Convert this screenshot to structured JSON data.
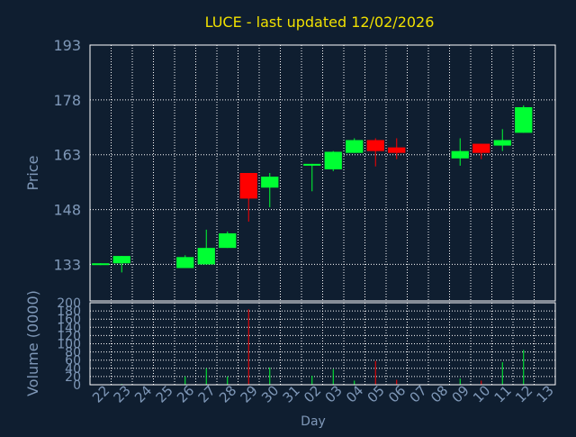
{
  "title": "LUCE - last updated 12/02/2026",
  "colors": {
    "background": "#0f1e30",
    "title": "#f0e000",
    "axis_text": "#7f98b8",
    "grid": "#ffffff",
    "axis_line": "#ffffff",
    "up": "#00ff33",
    "down": "#ff0000"
  },
  "chart_data": [
    {
      "type": "candlestick",
      "ylabel": "Price",
      "ylim": [
        123,
        193
      ],
      "yticks": [
        133,
        148,
        163,
        178,
        193
      ],
      "grid": true,
      "candles": [
        {
          "day": "22",
          "open": 133.0,
          "high": 133.3,
          "low": 132.8,
          "close": 133.3
        },
        {
          "day": "23",
          "open": 133.3,
          "high": 135.3,
          "low": 130.8,
          "close": 135.3
        },
        {
          "day": "24",
          "open": null,
          "high": null,
          "low": null,
          "close": null
        },
        {
          "day": "25",
          "open": null,
          "high": null,
          "low": null,
          "close": null
        },
        {
          "day": "26",
          "open": 132.0,
          "high": 135.5,
          "low": 132.0,
          "close": 135.0
        },
        {
          "day": "27",
          "open": 133.0,
          "high": 142.5,
          "low": 133.0,
          "close": 137.5
        },
        {
          "day": "28",
          "open": 137.5,
          "high": 142.0,
          "low": 137.5,
          "close": 141.5
        },
        {
          "day": "29",
          "open": 158.0,
          "high": 158.0,
          "low": 144.7,
          "close": 151.0
        },
        {
          "day": "30",
          "open": 154.0,
          "high": 158.0,
          "low": 148.6,
          "close": 157.0
        },
        {
          "day": "31",
          "open": null,
          "high": null,
          "low": null,
          "close": null
        },
        {
          "day": "02",
          "open": 160.0,
          "high": 160.5,
          "low": 153.0,
          "close": 160.5
        },
        {
          "day": "03",
          "open": 159.0,
          "high": 164.0,
          "low": 158.5,
          "close": 163.8
        },
        {
          "day": "04",
          "open": 163.5,
          "high": 167.5,
          "low": 163.5,
          "close": 167.0
        },
        {
          "day": "05",
          "open": 167.0,
          "high": 167.5,
          "low": 159.8,
          "close": 164.0
        },
        {
          "day": "06",
          "open": 165.0,
          "high": 167.5,
          "low": 161.8,
          "close": 163.5
        },
        {
          "day": "07",
          "open": null,
          "high": null,
          "low": null,
          "close": null
        },
        {
          "day": "08",
          "open": null,
          "high": null,
          "low": null,
          "close": null
        },
        {
          "day": "09",
          "open": 162.0,
          "high": 167.5,
          "low": 160.0,
          "close": 164.0
        },
        {
          "day": "10",
          "open": 166.0,
          "high": 166.0,
          "low": 161.8,
          "close": 163.5
        },
        {
          "day": "11",
          "open": 165.5,
          "high": 170.0,
          "low": 164.0,
          "close": 167.0
        },
        {
          "day": "12",
          "open": 169.0,
          "high": 176.5,
          "low": 169.0,
          "close": 176.0
        }
      ]
    },
    {
      "type": "bar",
      "ylabel": "Volume (0000)",
      "xlabel": "Day",
      "ylim": [
        0,
        200
      ],
      "yticks": [
        0,
        20,
        40,
        60,
        80,
        100,
        120,
        140,
        160,
        180,
        200
      ],
      "grid": true,
      "categories": [
        "22",
        "23",
        "24",
        "25",
        "26",
        "27",
        "28",
        "29",
        "30",
        "31",
        "02",
        "03",
        "04",
        "05",
        "06",
        "07",
        "08",
        "09",
        "10",
        "11",
        "12",
        "13"
      ],
      "values": [
        1,
        2,
        0,
        0,
        20,
        40,
        20,
        184,
        42,
        0,
        22,
        38,
        10,
        58,
        12,
        0,
        0,
        15,
        10,
        55,
        85,
        0
      ],
      "directions": [
        "up",
        "up",
        "none",
        "none",
        "up",
        "up",
        "up",
        "down",
        "up",
        "none",
        "up",
        "up",
        "up",
        "down",
        "down",
        "none",
        "none",
        "up",
        "down",
        "up",
        "up",
        "none"
      ]
    }
  ]
}
